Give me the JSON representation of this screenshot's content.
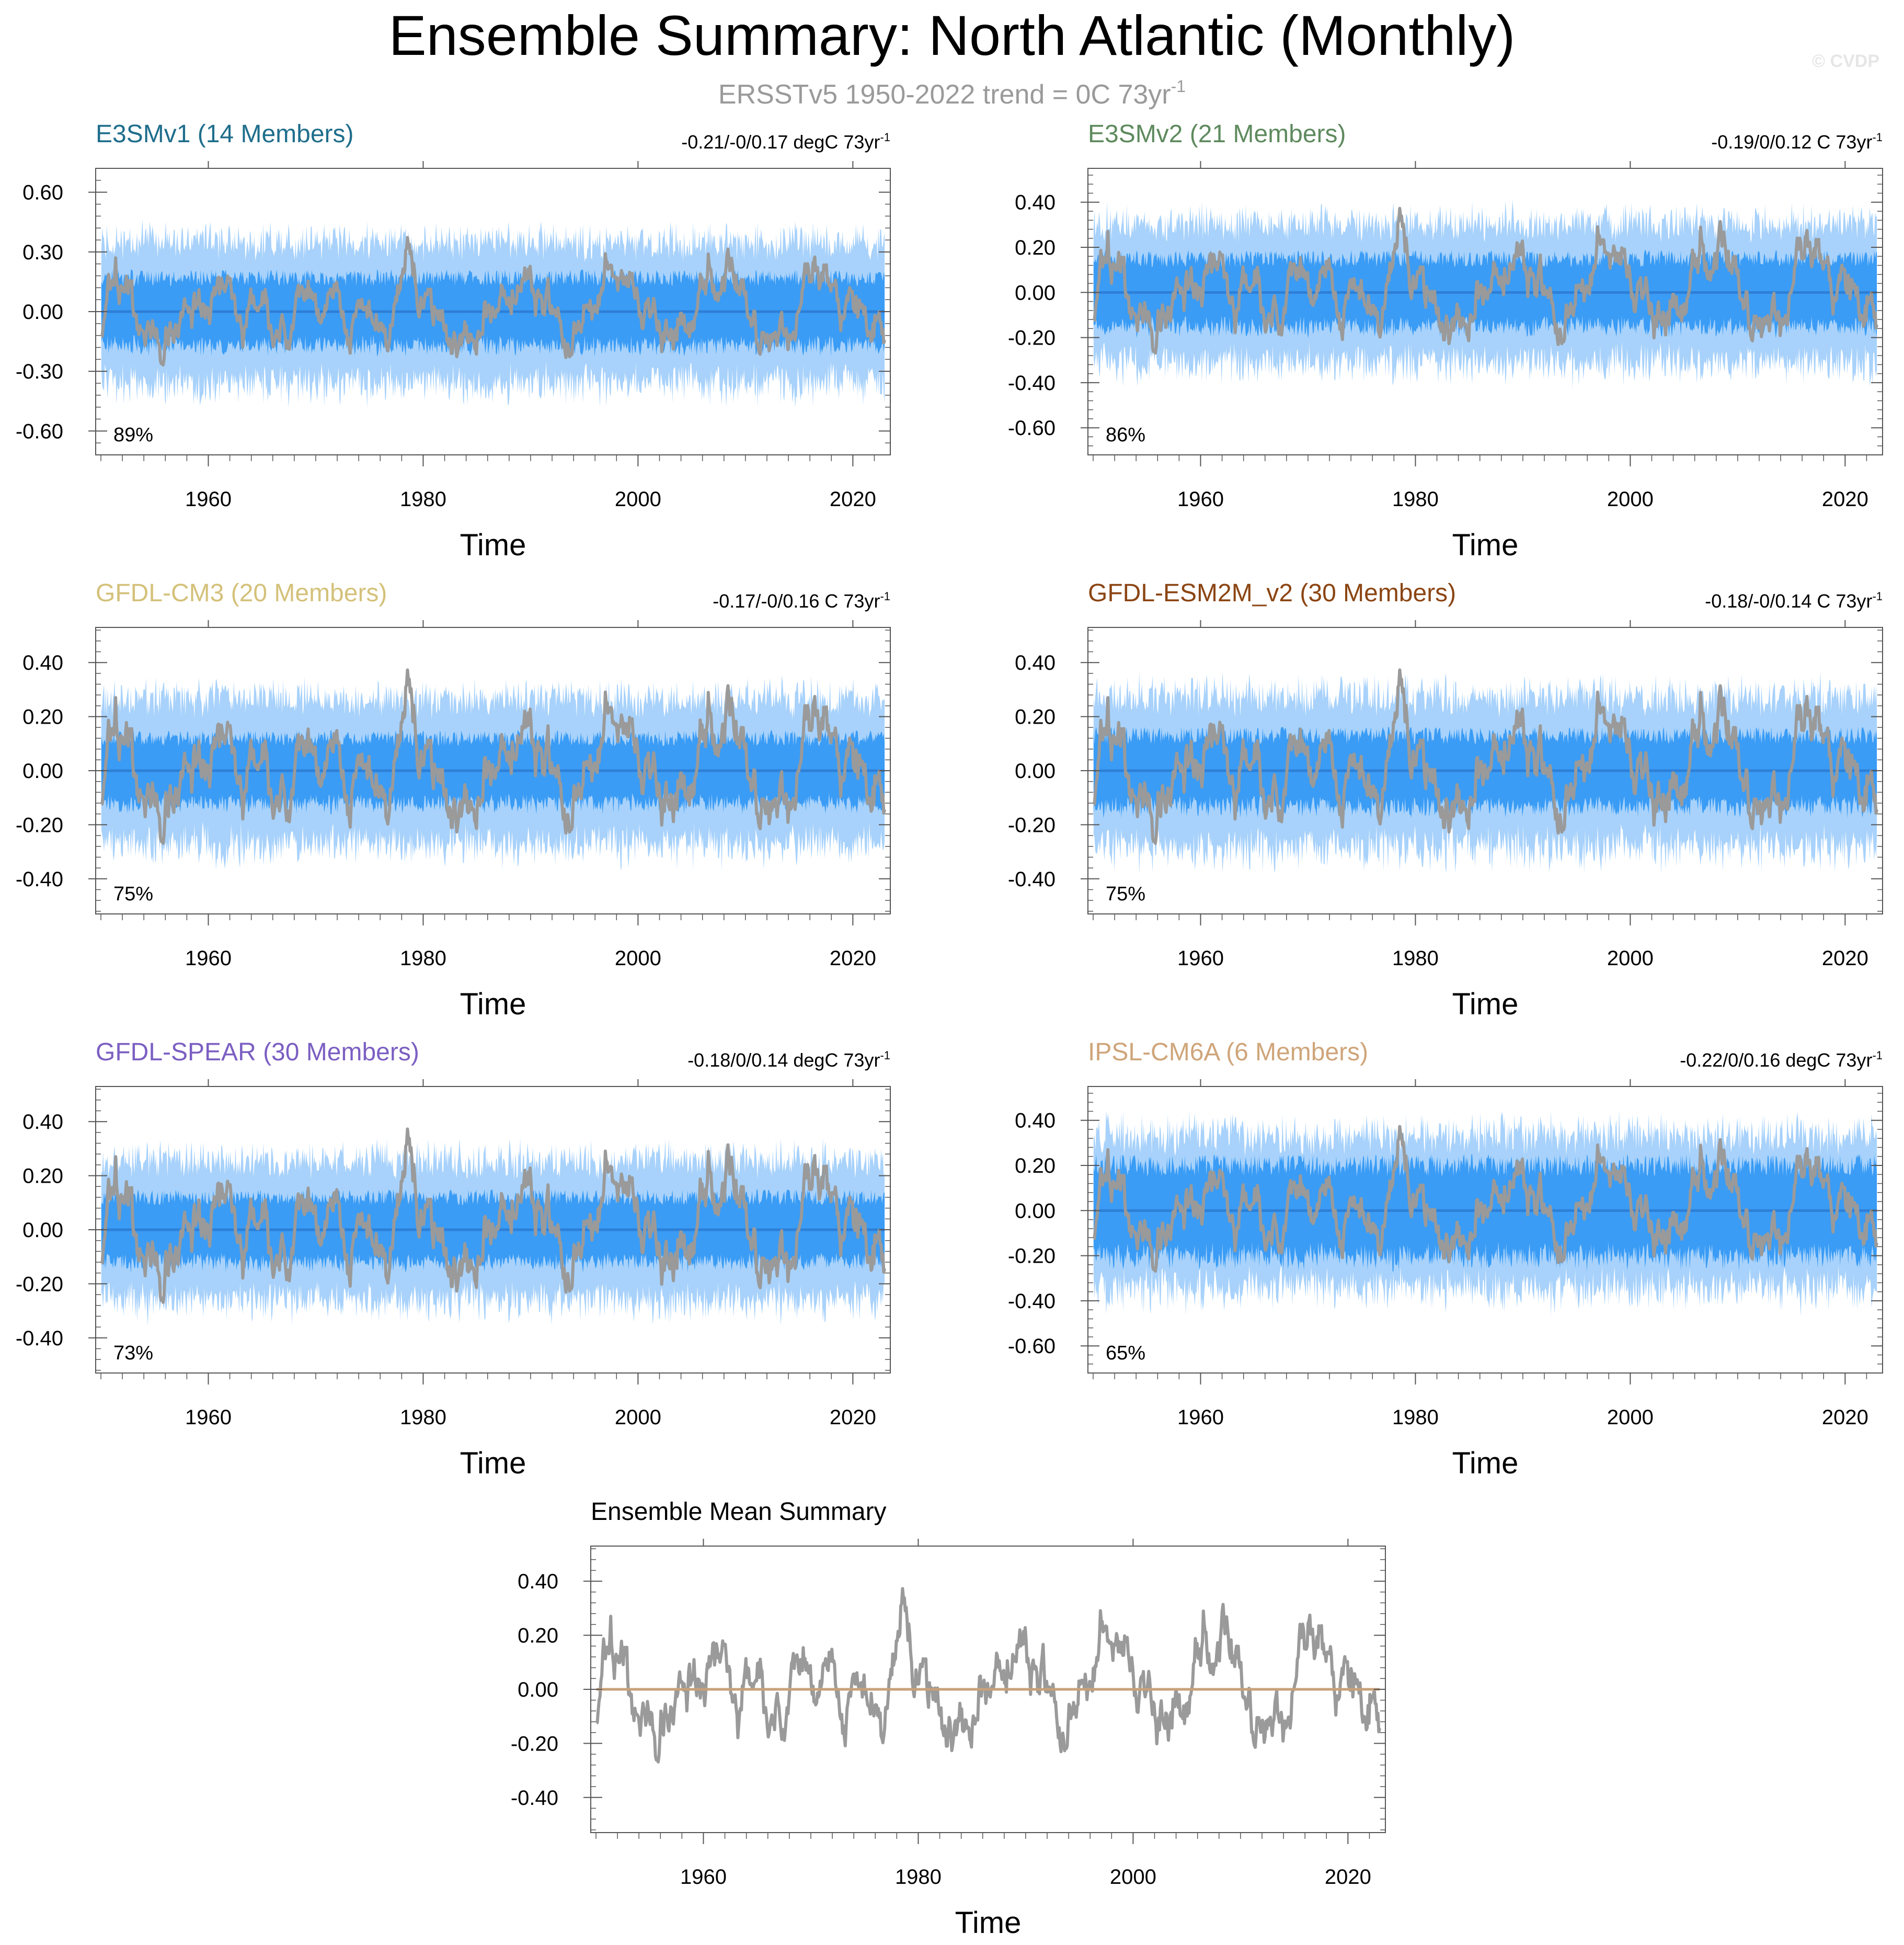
{
  "page": {
    "title": "Ensemble Summary: North Atlantic (Monthly)",
    "subtitle_base": "ERSSTv5 1950-2022 trend = 0C 73yr",
    "subtitle_exp": "-1",
    "watermark": "© CVDP",
    "time_label": "Time"
  },
  "colors": {
    "band_outer": "#a8d2fb",
    "band_inner": "#3a9cf5",
    "ens_mean": "#2e7fd6",
    "obs": "#9a9a9a",
    "zero_line_mean": "#c8a07a",
    "axis": "#555555"
  },
  "chart_data": [
    {
      "type": "area",
      "title": "E3SMv1 (14 Members)",
      "title_color": "#1f6e8c",
      "trend_base": "-0.21/-0/0.17 degC 73yr",
      "trend_exp": "-1",
      "percent": "89%",
      "xlim": [
        1950,
        2023
      ],
      "ylim": [
        -0.72,
        0.72
      ],
      "yticks": [
        0.6,
        0.3,
        0.0,
        -0.3,
        -0.6
      ],
      "ytick_labels": [
        "0.60",
        "0.30",
        "0.00",
        "-0.30",
        "-0.60"
      ],
      "xticks": [
        1960,
        1980,
        2000,
        2020
      ],
      "xtick_labels": [
        "1960",
        "1980",
        "2000",
        "2020"
      ],
      "xlabel": "Time",
      "band_outer": 0.34,
      "band_inner": 0.17,
      "seed": 11,
      "series": [
        {
          "name": "",
          "role": "ensemble-range"
        },
        {
          "name": "",
          "role": "ensemble-mean"
        },
        {
          "name": "",
          "role": "observations"
        }
      ]
    },
    {
      "type": "area",
      "title": "E3SMv2 (21 Members)",
      "title_color": "#5e8a5e",
      "trend_base": "-0.19/0/0.12 C 73yr",
      "trend_exp": "-1",
      "percent": "86%",
      "xlim": [
        1950,
        2023
      ],
      "ylim": [
        -0.72,
        0.55
      ],
      "yticks": [
        0.4,
        0.2,
        0.0,
        -0.2,
        -0.4,
        -0.6
      ],
      "ytick_labels": [
        "0.40",
        "0.20",
        "0.00",
        "-0.20",
        "-0.40",
        "-0.60"
      ],
      "xticks": [
        1960,
        1980,
        2000,
        2020
      ],
      "xtick_labels": [
        "1960",
        "1980",
        "2000",
        "2020"
      ],
      "xlabel": "Time",
      "band_outer": 0.3,
      "band_inner": 0.15,
      "seed": 23,
      "series": [
        {
          "name": "",
          "role": "ensemble-range"
        },
        {
          "name": "",
          "role": "ensemble-mean"
        },
        {
          "name": "",
          "role": "observations"
        }
      ]
    },
    {
      "type": "area",
      "title": "GFDL-CM3 (20 Members)",
      "title_color": "#d4c17a",
      "trend_base": "-0.17/-0/0.16 C 73yr",
      "trend_exp": "-1",
      "percent": "75%",
      "xlim": [
        1950,
        2023
      ],
      "ylim": [
        -0.53,
        0.53
      ],
      "yticks": [
        0.4,
        0.2,
        0.0,
        -0.2,
        -0.4
      ],
      "ytick_labels": [
        "0.40",
        "0.20",
        "0.00",
        "-0.20",
        "-0.40"
      ],
      "xticks": [
        1960,
        1980,
        2000,
        2020
      ],
      "xtick_labels": [
        "1960",
        "1980",
        "2000",
        "2020"
      ],
      "xlabel": "Time",
      "band_outer": 0.26,
      "band_inner": 0.12,
      "seed": 37,
      "series": [
        {
          "name": "",
          "role": "ensemble-range"
        },
        {
          "name": "",
          "role": "ensemble-mean"
        },
        {
          "name": "",
          "role": "observations"
        }
      ]
    },
    {
      "type": "area",
      "title": "GFDL-ESM2M_v2 (30 Members)",
      "title_color": "#8b4513",
      "trend_base": "-0.18/-0/0.14 C 73yr",
      "trend_exp": "-1",
      "percent": "75%",
      "xlim": [
        1950,
        2023
      ],
      "ylim": [
        -0.53,
        0.53
      ],
      "yticks": [
        0.4,
        0.2,
        0.0,
        -0.2,
        -0.4
      ],
      "ytick_labels": [
        "0.40",
        "0.20",
        "0.00",
        "-0.20",
        "-0.40"
      ],
      "xticks": [
        1960,
        1980,
        2000,
        2020
      ],
      "xtick_labels": [
        "1960",
        "1980",
        "2000",
        "2020"
      ],
      "xlabel": "Time",
      "band_outer": 0.27,
      "band_inner": 0.13,
      "seed": 41,
      "series": [
        {
          "name": "",
          "role": "ensemble-range"
        },
        {
          "name": "",
          "role": "ensemble-mean"
        },
        {
          "name": "",
          "role": "observations"
        }
      ]
    },
    {
      "type": "area",
      "title": "GFDL-SPEAR (30 Members)",
      "title_color": "#7b5fc2",
      "trend_base": "-0.18/0/0.14 degC 73yr",
      "trend_exp": "-1",
      "percent": "73%",
      "xlim": [
        1950,
        2023
      ],
      "ylim": [
        -0.53,
        0.53
      ],
      "yticks": [
        0.4,
        0.2,
        0.0,
        -0.2,
        -0.4
      ],
      "ytick_labels": [
        "0.40",
        "0.20",
        "0.00",
        "-0.20",
        "-0.40"
      ],
      "xticks": [
        1960,
        1980,
        2000,
        2020
      ],
      "xtick_labels": [
        "1960",
        "1980",
        "2000",
        "2020"
      ],
      "xlabel": "Time",
      "band_outer": 0.25,
      "band_inner": 0.12,
      "seed": 53,
      "series": [
        {
          "name": "",
          "role": "ensemble-range"
        },
        {
          "name": "",
          "role": "ensemble-mean"
        },
        {
          "name": "",
          "role": "observations"
        }
      ]
    },
    {
      "type": "area",
      "title": "IPSL-CM6A (6 Members)",
      "title_color": "#cfa57a",
      "trend_base": "-0.22/0/0.16 degC 73yr",
      "trend_exp": "-1",
      "percent": "65%",
      "xlim": [
        1950,
        2023
      ],
      "ylim": [
        -0.72,
        0.55
      ],
      "yticks": [
        0.4,
        0.2,
        0.0,
        -0.2,
        -0.4,
        -0.6
      ],
      "ytick_labels": [
        "0.40",
        "0.20",
        "0.00",
        "-0.20",
        "-0.40",
        "-0.60"
      ],
      "xticks": [
        1960,
        1980,
        2000,
        2020
      ],
      "xtick_labels": [
        "1960",
        "1980",
        "2000",
        "2020"
      ],
      "xlabel": "Time",
      "band_outer": 0.33,
      "band_inner": 0.2,
      "seed": 67,
      "series": [
        {
          "name": "",
          "role": "ensemble-range"
        },
        {
          "name": "",
          "role": "ensemble-mean"
        },
        {
          "name": "",
          "role": "observations"
        }
      ]
    },
    {
      "type": "line",
      "title": "Ensemble Mean Summary",
      "title_color": "#000000",
      "xlim": [
        1950,
        2023
      ],
      "ylim": [
        -0.53,
        0.53
      ],
      "yticks": [
        0.4,
        0.2,
        0.0,
        -0.2,
        -0.4
      ],
      "ytick_labels": [
        "0.40",
        "0.20",
        "0.00",
        "-0.20",
        "-0.40"
      ],
      "xticks": [
        1960,
        1980,
        2000,
        2020
      ],
      "xtick_labels": [
        "1960",
        "1980",
        "2000",
        "2020"
      ],
      "xlabel": "Time",
      "series": [
        {
          "name": "",
          "role": "observations"
        },
        {
          "name": "",
          "role": "ensemble-mean"
        }
      ]
    }
  ]
}
